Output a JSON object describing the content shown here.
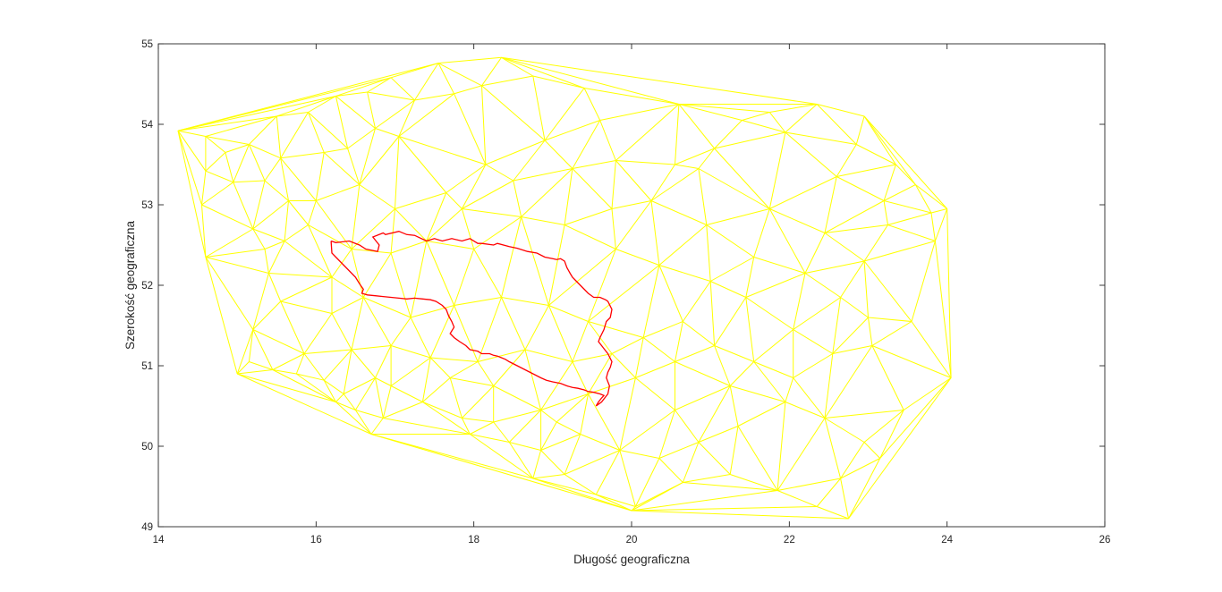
{
  "chart_data": {
    "type": "line",
    "title": "",
    "xlabel": "Długość geograficzna",
    "ylabel": "Szerokość geograficzna",
    "xlim": [
      14,
      26
    ],
    "ylim": [
      49,
      55
    ],
    "xticks": [
      14,
      16,
      18,
      20,
      22,
      24,
      26
    ],
    "yticks": [
      49,
      50,
      51,
      52,
      53,
      54,
      55
    ],
    "grid": false,
    "box": true,
    "colors": {
      "mesh": "#ffff00",
      "outline": "#ff0000",
      "axes": "#262626"
    },
    "series": [
      {
        "type": "triangulation",
        "points": [
          [
            14.25,
            53.92
          ],
          [
            14.6,
            53.85
          ],
          [
            14.6,
            53.42
          ],
          [
            14.85,
            53.65
          ],
          [
            14.95,
            53.28
          ],
          [
            14.6,
            52.35
          ],
          [
            15.0,
            50.9
          ],
          [
            14.55,
            53.0
          ],
          [
            15.15,
            53.75
          ],
          [
            15.35,
            53.3
          ],
          [
            15.65,
            53.05
          ],
          [
            15.2,
            52.7
          ],
          [
            15.6,
            52.55
          ],
          [
            15.4,
            52.15
          ],
          [
            15.55,
            51.8
          ],
          [
            15.2,
            51.45
          ],
          [
            15.15,
            51.05
          ],
          [
            15.45,
            50.95
          ],
          [
            15.75,
            50.9
          ],
          [
            16.1,
            50.82
          ],
          [
            16.25,
            50.55
          ],
          [
            16.5,
            50.45
          ],
          [
            16.7,
            50.15
          ],
          [
            16.85,
            50.35
          ],
          [
            15.5,
            54.1
          ],
          [
            15.9,
            54.15
          ],
          [
            16.25,
            54.35
          ],
          [
            16.65,
            54.4
          ],
          [
            16.95,
            54.58
          ],
          [
            17.55,
            54.76
          ],
          [
            18.35,
            54.83
          ],
          [
            18.1,
            54.48
          ],
          [
            18.75,
            54.6
          ],
          [
            17.75,
            54.38
          ],
          [
            17.25,
            54.3
          ],
          [
            16.75,
            53.95
          ],
          [
            17.05,
            53.85
          ],
          [
            16.4,
            53.7
          ],
          [
            16.1,
            53.65
          ],
          [
            15.55,
            53.58
          ],
          [
            16.0,
            53.05
          ],
          [
            16.55,
            53.25
          ],
          [
            17.0,
            52.95
          ],
          [
            17.65,
            53.15
          ],
          [
            18.15,
            53.5
          ],
          [
            18.5,
            53.3
          ],
          [
            18.9,
            53.8
          ],
          [
            19.25,
            53.45
          ],
          [
            19.6,
            54.05
          ],
          [
            19.8,
            53.55
          ],
          [
            20.25,
            53.05
          ],
          [
            20.55,
            53.5
          ],
          [
            21.05,
            53.7
          ],
          [
            21.4,
            54.05
          ],
          [
            21.95,
            53.9
          ],
          [
            22.35,
            54.25
          ],
          [
            22.95,
            54.1
          ],
          [
            22.85,
            53.75
          ],
          [
            23.35,
            53.5
          ],
          [
            23.8,
            52.9
          ],
          [
            23.25,
            52.75
          ],
          [
            23.85,
            52.55
          ],
          [
            22.95,
            52.3
          ],
          [
            22.2,
            52.15
          ],
          [
            21.55,
            52.35
          ],
          [
            21.0,
            52.05
          ],
          [
            20.35,
            52.25
          ],
          [
            19.8,
            52.45
          ],
          [
            19.15,
            52.75
          ],
          [
            18.6,
            52.85
          ],
          [
            18.0,
            52.45
          ],
          [
            17.4,
            52.55
          ],
          [
            16.95,
            52.4
          ],
          [
            16.45,
            52.45
          ],
          [
            16.2,
            52.1
          ],
          [
            16.6,
            51.85
          ],
          [
            17.2,
            51.6
          ],
          [
            17.75,
            51.75
          ],
          [
            18.35,
            51.85
          ],
          [
            18.95,
            51.75
          ],
          [
            19.45,
            51.55
          ],
          [
            19.75,
            51.15
          ],
          [
            19.25,
            51.05
          ],
          [
            18.65,
            51.2
          ],
          [
            18.05,
            51.05
          ],
          [
            17.45,
            51.1
          ],
          [
            16.95,
            51.25
          ],
          [
            16.45,
            51.2
          ],
          [
            16.2,
            51.65
          ],
          [
            16.75,
            50.85
          ],
          [
            17.35,
            50.55
          ],
          [
            17.85,
            50.35
          ],
          [
            18.25,
            50.75
          ],
          [
            18.85,
            50.45
          ],
          [
            19.45,
            50.65
          ],
          [
            20.05,
            50.85
          ],
          [
            20.55,
            51.05
          ],
          [
            21.05,
            51.25
          ],
          [
            21.55,
            51.05
          ],
          [
            22.05,
            50.85
          ],
          [
            22.55,
            51.15
          ],
          [
            23.05,
            51.25
          ],
          [
            23.55,
            51.55
          ],
          [
            24.05,
            50.85
          ],
          [
            23.45,
            50.45
          ],
          [
            22.95,
            50.05
          ],
          [
            22.45,
            50.35
          ],
          [
            21.95,
            50.55
          ],
          [
            21.35,
            50.25
          ],
          [
            20.85,
            50.05
          ],
          [
            20.35,
            49.85
          ],
          [
            19.85,
            49.95
          ],
          [
            19.35,
            50.15
          ],
          [
            18.85,
            49.95
          ],
          [
            18.45,
            50.05
          ],
          [
            17.95,
            50.15
          ],
          [
            19.15,
            49.65
          ],
          [
            19.55,
            49.4
          ],
          [
            20.05,
            49.25
          ],
          [
            20.65,
            49.55
          ],
          [
            21.25,
            49.65
          ],
          [
            21.85,
            49.45
          ],
          [
            22.35,
            49.25
          ],
          [
            22.75,
            49.1
          ],
          [
            22.65,
            49.6
          ],
          [
            23.15,
            49.85
          ],
          [
            20.0,
            49.2
          ],
          [
            18.75,
            49.6
          ],
          [
            21.45,
            51.85
          ],
          [
            22.05,
            51.45
          ],
          [
            22.65,
            51.85
          ],
          [
            20.65,
            51.55
          ],
          [
            20.15,
            51.35
          ],
          [
            20.95,
            52.75
          ],
          [
            21.75,
            52.95
          ],
          [
            22.45,
            52.65
          ],
          [
            20.85,
            53.45
          ],
          [
            19.75,
            52.95
          ],
          [
            17.85,
            52.95
          ],
          [
            24.0,
            52.95
          ],
          [
            23.6,
            53.25
          ],
          [
            23.2,
            53.05
          ],
          [
            21.25,
            50.75
          ],
          [
            20.55,
            50.45
          ],
          [
            19.05,
            50.3
          ],
          [
            18.25,
            50.3
          ],
          [
            16.35,
            50.65
          ],
          [
            15.85,
            51.15
          ],
          [
            16.95,
            50.75
          ],
          [
            17.7,
            50.85
          ],
          [
            15.9,
            52.75
          ],
          [
            15.35,
            52.45
          ],
          [
            21.75,
            54.15
          ],
          [
            20.6,
            54.25
          ],
          [
            19.4,
            54.45
          ],
          [
            22.6,
            53.35
          ],
          [
            23.0,
            51.6
          ]
        ]
      },
      {
        "name": "",
        "type": "line",
        "x": [
          16.19,
          16.25,
          16.42,
          16.55,
          16.63,
          16.78,
          16.8,
          16.72,
          16.85,
          16.88,
          17.05,
          17.15,
          17.25,
          17.4,
          17.5,
          17.6,
          17.72,
          17.85,
          17.95,
          18.05,
          18.1,
          18.25,
          18.3,
          18.45,
          18.55,
          18.68,
          18.8,
          18.9,
          19.0,
          19.05,
          19.1,
          19.15,
          19.18,
          19.22,
          19.25,
          19.3,
          19.35,
          19.4,
          19.45,
          19.52,
          19.6,
          19.67,
          19.7,
          19.75,
          19.73,
          19.68,
          19.65,
          19.6,
          19.58,
          19.62,
          19.66,
          19.7,
          19.75,
          19.73,
          19.7,
          19.68,
          19.72,
          19.7,
          19.62,
          19.55,
          19.58,
          19.62,
          19.65,
          19.6,
          19.52,
          19.45,
          19.4,
          19.32,
          19.25,
          19.18,
          19.1,
          19.0,
          18.92,
          18.85,
          18.75,
          18.65,
          18.55,
          18.45,
          18.4,
          18.35,
          18.3,
          18.25,
          18.2,
          18.1,
          18.05,
          17.95,
          17.9,
          17.82,
          17.75,
          17.7,
          17.75,
          17.72,
          17.68,
          17.65,
          17.6,
          17.52,
          17.45,
          17.35,
          17.25,
          17.15,
          17.05,
          16.95,
          16.85,
          16.75,
          16.65,
          16.58,
          16.6,
          16.55,
          16.5,
          16.45,
          16.4,
          16.35,
          16.3,
          16.25,
          16.2,
          16.19
        ],
        "y": [
          52.55,
          52.53,
          52.55,
          52.5,
          52.45,
          52.42,
          52.5,
          52.6,
          52.65,
          52.63,
          52.67,
          52.63,
          52.62,
          52.55,
          52.58,
          52.55,
          52.58,
          52.55,
          52.58,
          52.52,
          52.52,
          52.5,
          52.52,
          52.48,
          52.46,
          52.42,
          52.4,
          52.35,
          52.33,
          52.32,
          52.33,
          52.3,
          52.22,
          52.15,
          52.1,
          52.05,
          52.0,
          51.95,
          51.9,
          51.85,
          51.85,
          51.82,
          51.8,
          51.7,
          51.6,
          51.55,
          51.45,
          51.35,
          51.3,
          51.25,
          51.2,
          51.15,
          51.05,
          50.98,
          50.92,
          50.85,
          50.75,
          50.65,
          50.55,
          50.5,
          50.55,
          50.6,
          50.63,
          50.65,
          50.67,
          50.68,
          50.7,
          50.72,
          50.73,
          50.75,
          50.78,
          50.8,
          50.82,
          50.85,
          50.9,
          50.95,
          51.0,
          51.05,
          51.08,
          51.1,
          51.12,
          51.13,
          51.15,
          51.15,
          51.18,
          51.2,
          51.25,
          51.3,
          51.35,
          51.4,
          51.48,
          51.55,
          51.62,
          51.7,
          51.75,
          51.8,
          51.82,
          51.83,
          51.84,
          51.83,
          51.84,
          51.85,
          51.86,
          51.87,
          51.88,
          51.9,
          51.95,
          52.02,
          52.1,
          52.15,
          52.2,
          52.25,
          52.3,
          52.35,
          52.4,
          52.55
        ]
      }
    ]
  }
}
